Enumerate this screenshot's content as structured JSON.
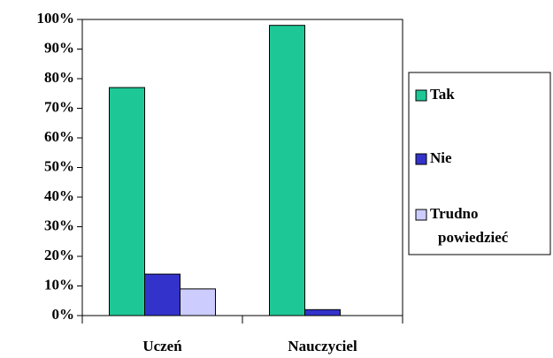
{
  "chart_data": {
    "type": "bar",
    "categories": [
      "Uczeń",
      "Nauczyciel"
    ],
    "series": [
      {
        "name": "Tak",
        "color": "#1ec896",
        "values": [
          77,
          98
        ]
      },
      {
        "name": "Nie",
        "color": "#3333cc",
        "values": [
          14,
          2
        ]
      },
      {
        "name": "Trudno powiedzieć",
        "color": "#ccccff",
        "values": [
          9,
          0
        ]
      }
    ],
    "ylim": [
      0,
      100
    ],
    "yticks": [
      {
        "value": 0,
        "label": "0%"
      },
      {
        "value": 10,
        "label": "10%"
      },
      {
        "value": 20,
        "label": "20%"
      },
      {
        "value": 30,
        "label": "30%"
      },
      {
        "value": 40,
        "label": "40%"
      },
      {
        "value": 50,
        "label": "50%"
      },
      {
        "value": 60,
        "label": "60%"
      },
      {
        "value": 70,
        "label": "70%"
      },
      {
        "value": 80,
        "label": "80%"
      },
      {
        "value": 90,
        "label": "90%"
      },
      {
        "value": 100,
        "label": "100%"
      }
    ],
    "grid": false,
    "legend": "right"
  }
}
